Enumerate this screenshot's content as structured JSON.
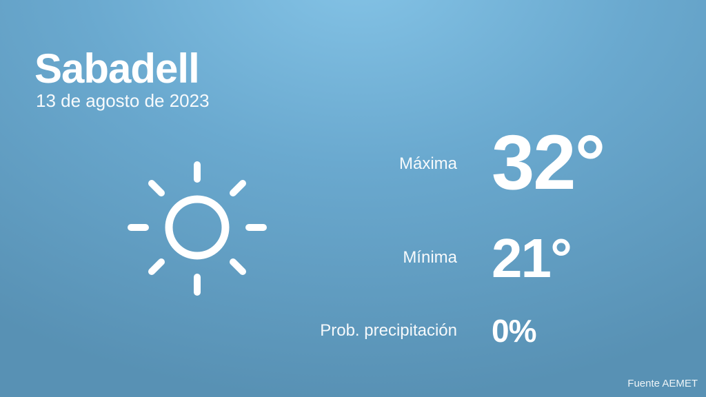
{
  "location": {
    "city": "Sabadell",
    "date": "13 de agosto de 2023"
  },
  "weather_icon": "sun-icon",
  "forecast": {
    "max_label": "Máxima",
    "max_value": "32°",
    "min_label": "Mínima",
    "min_value": "21°",
    "precip_label": "Prob. precipitación",
    "precip_value": "0%"
  },
  "source": "Fuente AEMET",
  "colors": {
    "background_top": "#84c3e6",
    "background_bottom": "#5891b4",
    "text": "#ffffff"
  }
}
